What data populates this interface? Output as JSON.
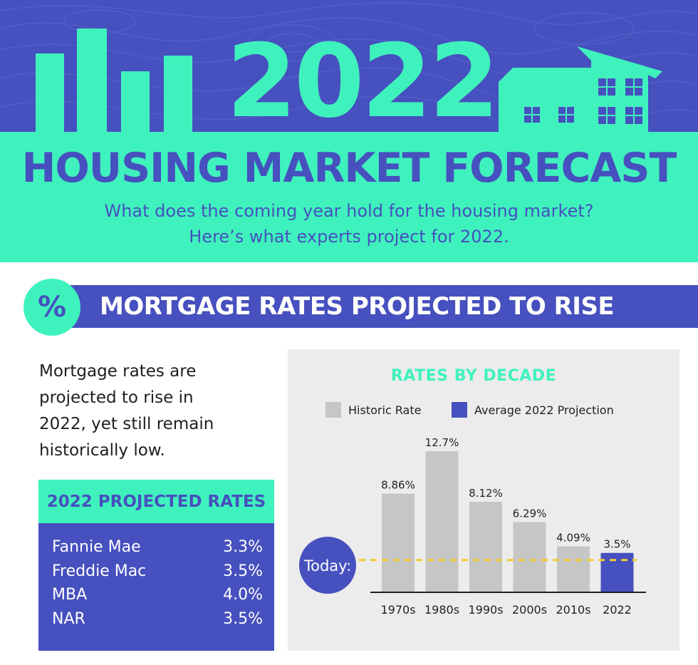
{
  "header": {
    "year": "2022",
    "title": "HOUSING MARKET FORECAST",
    "subtitle_lines": [
      "What does the coming year hold for the housing market?",
      "Here’s what experts project for 2022."
    ]
  },
  "section": {
    "icon_symbol": "%",
    "title": "MORTGAGE RATES PROJECTED TO RISE"
  },
  "intro_lines": [
    "Mortgage rates are",
    "projected to rise in",
    "2022, yet still remain",
    "historically low."
  ],
  "projected_rates": {
    "title": "2022 PROJECTED RATES",
    "rows": [
      {
        "name": "Fannie Mae",
        "value": "3.3%"
      },
      {
        "name": "Freddie Mac",
        "value": "3.5%"
      },
      {
        "name": "MBA",
        "value": "4.0%"
      },
      {
        "name": "NAR",
        "value": "3.5%"
      }
    ]
  },
  "colors": {
    "brand_blue": "#4650be",
    "mint": "#3ff2bd",
    "historic_gray": "#c6c6c6",
    "today_line": "#f2cc2e",
    "panel_bg": "#ececec"
  },
  "chart_data": {
    "type": "bar",
    "title": "RATES BY DECADE",
    "categories": [
      "1970s",
      "1980s",
      "1990s",
      "2000s",
      "2010s",
      "2022"
    ],
    "values": [
      8.86,
      12.7,
      8.12,
      6.29,
      4.09,
      3.5
    ],
    "value_labels": [
      "8.86%",
      "12.7%",
      "8.12%",
      "6.29%",
      "4.09%",
      "3.5%"
    ],
    "series_kind": [
      "historic",
      "historic",
      "historic",
      "historic",
      "historic",
      "projection"
    ],
    "legend": [
      {
        "name": "Historic Rate",
        "color": "#c6c6c6"
      },
      {
        "name": "Average 2022 Projection",
        "color": "#4650be"
      }
    ],
    "legend_position": "top",
    "reference_line": {
      "label": "Today:",
      "value": 3.5
    },
    "ylim": [
      0,
      13.8
    ],
    "grid": false
  }
}
